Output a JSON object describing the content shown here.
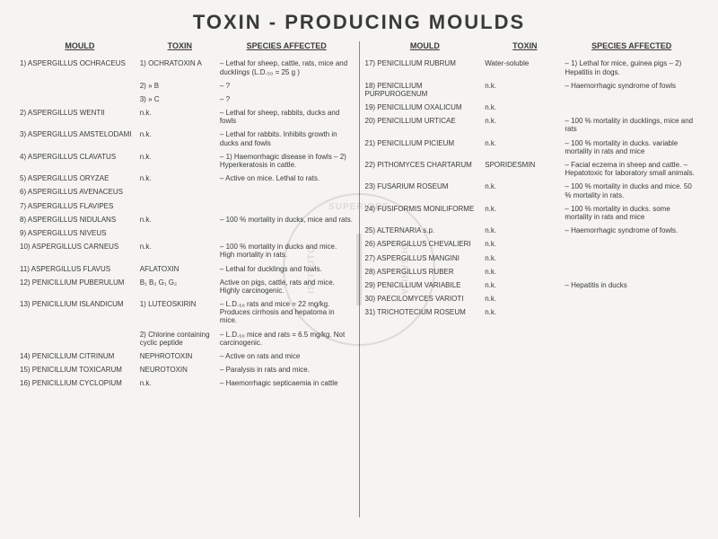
{
  "title": "TOXIN - PRODUCING  MOULDS",
  "headers": {
    "mould": "MOULD",
    "toxin": "TOXIN",
    "species": "SPECIES AFFECTED"
  },
  "left": [
    {
      "m": "1) ASPERGILLUS OCHRACEUS",
      "t": "1) OCHRATOXIN A",
      "s": "– Lethal for sheep, cattle, rats, mice and ducklings (L.D.₅₀ = 25 g )"
    },
    {
      "m": "",
      "t": "2)     »      B",
      "s": "– ?"
    },
    {
      "m": "",
      "t": "3)     »      C",
      "s": "– ?"
    },
    {
      "m": "2) ASPERGILLUS WENTII",
      "t": "n.k.",
      "s": "– Lethal for sheep, rabbits, ducks and fowls"
    },
    {
      "m": "3) ASPERGILLUS AMSTELODAMI",
      "t": "n.k.",
      "s": "– Lethal for rabbits. Inhibits growth in ducks and fowls"
    },
    {
      "m": "4) ASPERGILLUS CLAVATUS",
      "t": "n.k.",
      "s": "– 1) Haemorrhagic disease in fowls – 2) Hyperkeratosis in cattle."
    },
    {
      "m": "5) ASPERGILLUS ORYZAE",
      "t": "n.k.",
      "s": "– Active on mice. Lethal to rats."
    },
    {
      "m": "6) ASPERGILLUS AVENACEUS",
      "t": "",
      "s": ""
    },
    {
      "m": "7) ASPERGILLUS FLAVIPES",
      "t": "",
      "s": ""
    },
    {
      "m": "8) ASPERGILLUS NIDULANS",
      "t": "n.k.",
      "s": "– 100 % mortality in ducks, mice and rats."
    },
    {
      "m": "9) ASPERGILLUS NIVEUS",
      "t": "",
      "s": ""
    },
    {
      "m": "10) ASPERGILLUS CARNEUS",
      "t": "n.k.",
      "s": "– 100 % mortality in ducks and mice. High mortality in rats."
    },
    {
      "m": "11) ASPERGILLUS FLAVUS",
      "t": "AFLATOXIN",
      "s": "– Lethal for ducklings and fowls."
    },
    {
      "m": "12) PENICILLIUM PUBERULUM",
      "t": "B₁ B₂ G₁ G₂",
      "s": "Active on pigs, cattle, rats and mice. Highly carcinogenic."
    },
    {
      "m": "13) PENICILLIUM ISLANDICUM",
      "t": "1) LUTEOSKIRIN",
      "s": "– L.D.₅₀ rats and mice = 22 mg/kg. Produces cirrhosis and hepatoma in mice."
    },
    {
      "m": "",
      "t": "2) Chlorine containing cyclic peptide",
      "s": "– L.D.₅₀ mice and rats = 6.5 mg/kg. Not carcinogenic."
    },
    {
      "m": "14) PENICILLIUM CITRINUM",
      "t": "NEPHROTOXIN",
      "s": "– Active on rats and mice"
    },
    {
      "m": "15) PENICILLIUM TOXICARUM",
      "t": "NEUROTOXIN",
      "s": "– Paralysis in rats and mice."
    },
    {
      "m": "16) PENICILLIUM CYCLOPIUM",
      "t": "n.k.",
      "s": "– Haemorrhagic septicaemia in cattle"
    }
  ],
  "right": [
    {
      "m": "17) PENICILLIUM RUBRUM",
      "t": "Water-soluble",
      "s": "– 1) Lethal for mice, guinea pigs – 2) Hepatitis in dogs."
    },
    {
      "m": "18) PENICILLIUM PURPUROGENUM",
      "t": "n.k.",
      "s": "–   Haemorrhagic syndrome of fowls"
    },
    {
      "m": "19) PENICILLIUM OXALICUM",
      "t": "n.k.",
      "s": ""
    },
    {
      "m": "20) PENICILLIUM URTICAE",
      "t": "n.k.",
      "s": "–   100 % mortality in ducklings, mice and rats"
    },
    {
      "m": "21) PENICILLIUM PICIEUM",
      "t": "n.k.",
      "s": "–   100 % mortality in ducks. variable mortality in rats and mice"
    },
    {
      "m": "22) PITHOMYCES CHARTARUM",
      "t": "SPORIDESMIN",
      "s": "– Facial eczema in sheep and cattle. – Hepatotoxic for laboratory small animals."
    },
    {
      "m": "23) FUSARIUM ROSEUM",
      "t": "n.k.",
      "s": "– 100 % mortality in ducks and mice. 50 % mortality in rats."
    },
    {
      "m": "24) FUSIFORMIS MONILIFORME",
      "t": "n.k.",
      "s": "– 100 % mortality in ducks. some mortality in rats and mice"
    },
    {
      "m": "25) ALTERNARIA s.p.",
      "t": "n.k.",
      "s": "– Haemorrhagic syndrome of fowls."
    },
    {
      "m": "26) ASPERGILLUS CHEVALIERI",
      "t": "n.k.",
      "s": ""
    },
    {
      "m": "27) ASPERGILLUS MANGINI",
      "t": "n.k.",
      "s": ""
    },
    {
      "m": "28) ASPERGILLUS RUBER",
      "t": "n.k.",
      "s": ""
    },
    {
      "m": "29) PENICILLIUM VARIABILE",
      "t": "n.k.",
      "s": "– Hepatitis in ducks"
    },
    {
      "m": "30) PAECILOMYCES VARIOTI",
      "t": "n.k.",
      "s": ""
    },
    {
      "m": "31) TRICHOTECIUM ROSEUM",
      "t": "n.k.",
      "s": ""
    }
  ],
  "watermark": {
    "top": "SUPERIORE",
    "right": "DI SANITA",
    "left": "ISTITUTO"
  }
}
